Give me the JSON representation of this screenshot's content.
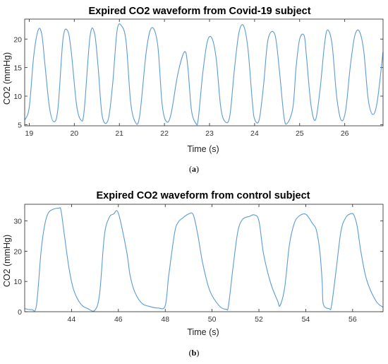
{
  "chart_data": [
    {
      "type": "line",
      "panel": "a",
      "title": "Expired CO2 waveform from Covid-19 subject",
      "xlabel": "Time (s)",
      "ylabel": "CO2 (mmHg)",
      "xlim": [
        18.9,
        26.85
      ],
      "ylim": [
        4.8,
        23.5
      ],
      "xticks": [
        19,
        20,
        21,
        22,
        23,
        24,
        25,
        26
      ],
      "yticks": [
        5,
        10,
        15,
        20
      ],
      "caption": "(a)",
      "caption_letter": "a",
      "line_color": "#5b9bd5",
      "series": [
        {
          "x": [
            18.9,
            19.0,
            19.1,
            19.2,
            19.28,
            19.35,
            19.45,
            19.55,
            19.64,
            19.75,
            19.85,
            19.93,
            20.05,
            20.15,
            20.22,
            20.35,
            20.45,
            20.53,
            20.62,
            20.75,
            20.85,
            20.95,
            21.05,
            21.15,
            21.25,
            21.35,
            21.45,
            21.6,
            21.72,
            21.85,
            21.95,
            22.05,
            22.15,
            22.3,
            22.45,
            22.52,
            22.6,
            22.7,
            22.75,
            22.85,
            22.95,
            23.05,
            23.15,
            23.25,
            23.35,
            23.45,
            23.55,
            23.65,
            23.75,
            23.85,
            23.95,
            24.0,
            24.1,
            24.2,
            24.3,
            24.45,
            24.55,
            24.65,
            24.72,
            24.85,
            24.92,
            25.0,
            25.1,
            25.15,
            25.25,
            25.35,
            25.45,
            25.55,
            25.62,
            25.72,
            25.82,
            25.92,
            26.02,
            26.12,
            26.22,
            26.32,
            26.42,
            26.52,
            26.62,
            26.72,
            26.85
          ],
          "y": [
            5.8,
            8.0,
            17.0,
            21.6,
            20.8,
            15.5,
            8.0,
            5.5,
            8.0,
            20.0,
            21.5,
            18.0,
            8.5,
            5.8,
            7.5,
            20.5,
            21.0,
            15.0,
            6.5,
            5.8,
            12.0,
            21.5,
            22.3,
            19.5,
            9.0,
            5.5,
            6.5,
            18.0,
            22.0,
            19.0,
            8.5,
            5.5,
            7.0,
            14.0,
            17.8,
            15.0,
            7.5,
            5.2,
            6.0,
            14.0,
            19.5,
            20.2,
            16.5,
            8.0,
            5.5,
            6.5,
            14.5,
            21.0,
            22.4,
            18.5,
            9.0,
            6.0,
            5.8,
            12.0,
            20.0,
            20.8,
            14.5,
            6.5,
            5.2,
            8.0,
            15.0,
            20.0,
            20.6,
            17.0,
            8.5,
            5.8,
            11.0,
            19.0,
            21.6,
            19.0,
            10.0,
            5.8,
            7.5,
            15.0,
            20.5,
            21.4,
            18.0,
            9.5,
            6.8,
            9.0,
            17.8
          ]
        }
      ]
    },
    {
      "type": "line",
      "panel": "b",
      "title": "Expired CO2 waveform from control subject",
      "xlabel": "Time (s)",
      "ylabel": "CO2 (mmHg)",
      "xlim": [
        42.0,
        57.3
      ],
      "ylim": [
        0,
        35.5
      ],
      "xticks": [
        44,
        46,
        48,
        50,
        52,
        54,
        56
      ],
      "yticks": [
        0,
        10,
        20,
        30
      ],
      "caption": "(b)",
      "caption_letter": "b",
      "line_color": "#5b9bd5",
      "series": [
        {
          "x": [
            42.0,
            42.3,
            42.5,
            42.7,
            42.85,
            43.0,
            43.2,
            43.45,
            43.55,
            43.7,
            43.9,
            44.1,
            44.4,
            44.7,
            45.0,
            45.2,
            45.4,
            45.6,
            45.8,
            46.0,
            46.35,
            46.5,
            46.7,
            47.0,
            47.3,
            47.7,
            48.0,
            48.15,
            48.4,
            48.55,
            48.75,
            49.0,
            49.2,
            49.4,
            49.6,
            49.9,
            50.3,
            50.6,
            50.7,
            50.9,
            51.1,
            51.3,
            51.6,
            51.8,
            52.0,
            52.2,
            52.5,
            52.8,
            52.9,
            53.1,
            53.3,
            53.5,
            53.7,
            54.0,
            54.3,
            54.45,
            54.6,
            54.7,
            54.75,
            55.0,
            55.1,
            55.3,
            55.5,
            55.7,
            55.9,
            56.05,
            56.2,
            56.35,
            56.6,
            57.0,
            57.3
          ],
          "y": [
            1.0,
            0.7,
            2.0,
            20.0,
            28.5,
            32.5,
            33.8,
            34.2,
            33.5,
            25.0,
            14.0,
            7.0,
            2.5,
            1.0,
            0.5,
            6.0,
            25.0,
            31.0,
            32.3,
            32.5,
            20.0,
            12.0,
            6.5,
            2.8,
            1.8,
            1.2,
            2.0,
            12.0,
            26.0,
            29.5,
            31.0,
            32.3,
            32.0,
            25.0,
            16.0,
            7.0,
            2.0,
            0.8,
            2.0,
            15.0,
            26.5,
            30.5,
            31.5,
            32.0,
            30.0,
            19.0,
            9.5,
            3.5,
            2.0,
            8.0,
            22.0,
            29.0,
            31.5,
            32.2,
            29.0,
            27.0,
            20.0,
            10.0,
            2.5,
            1.0,
            2.0,
            14.0,
            26.5,
            31.0,
            32.3,
            32.0,
            28.0,
            20.0,
            10.5,
            3.5,
            1.5
          ]
        }
      ]
    }
  ]
}
